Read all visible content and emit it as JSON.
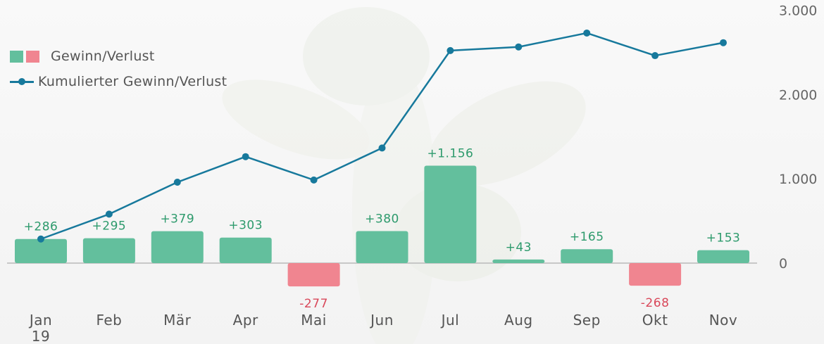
{
  "chart_data": {
    "type": "bar",
    "categories": [
      "Jan 19",
      "Feb",
      "Mär",
      "Apr",
      "Mai",
      "Jun",
      "Jul",
      "Aug",
      "Sep",
      "Okt",
      "Nov"
    ],
    "series": [
      {
        "name": "Gewinn/Verlust",
        "type": "bar",
        "values": [
          286,
          295,
          379,
          303,
          -277,
          380,
          1156,
          43,
          165,
          -268,
          153
        ],
        "labels": [
          "+286",
          "+295",
          "+379",
          "+303",
          "-277",
          "+380",
          "+1.156",
          "+43",
          "+165",
          "-268",
          "+153"
        ]
      },
      {
        "name": "Kumulierter Gewinn/Verlust",
        "type": "line",
        "values": [
          286,
          581,
          960,
          1263,
          986,
          1366,
          2522,
          2565,
          2730,
          2462,
          2615
        ]
      }
    ],
    "y_ticks": [
      0,
      1000,
      2000,
      3000
    ],
    "y_tick_labels": [
      "0",
      "1.000",
      "2.000",
      "3.000"
    ],
    "ylim": [
      -500,
      3000
    ],
    "legend_position": "top-left",
    "colors": {
      "positive": "#63bf9d",
      "negative": "#f08590",
      "line": "#17799c",
      "label_positive": "#2d9a6c",
      "label_negative": "#d9485a"
    }
  },
  "legend": {
    "bar_label": "Gewinn/Verlust",
    "line_label": "Kumulierter Gewinn/Verlust"
  }
}
